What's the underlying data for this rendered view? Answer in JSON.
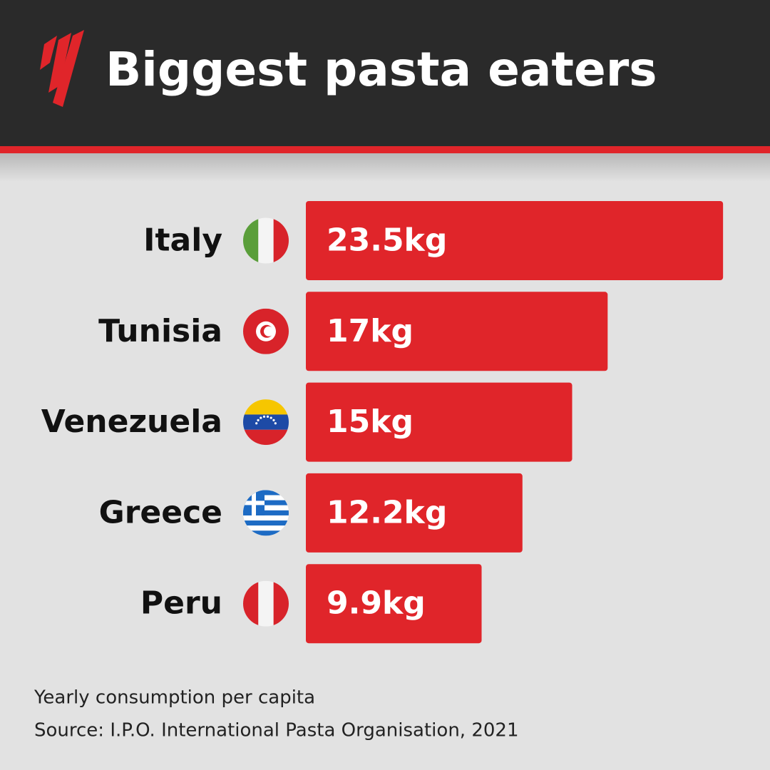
{
  "chart_data": {
    "type": "bar",
    "orientation": "horizontal",
    "title": "Biggest pasta eaters",
    "categories": [
      "Italy",
      "Tunisia",
      "Venezuela",
      "Greece",
      "Peru"
    ],
    "values": [
      23.5,
      17,
      15,
      12.2,
      9.9
    ],
    "value_labels": [
      "23.5kg",
      "17kg",
      "15kg",
      "12.2kg",
      "9.9kg"
    ],
    "color": "#e0252a",
    "notes": [
      "Yearly consumption per capita",
      "Source: I.P.O. International Pasta Organisation, 2021"
    ]
  }
}
